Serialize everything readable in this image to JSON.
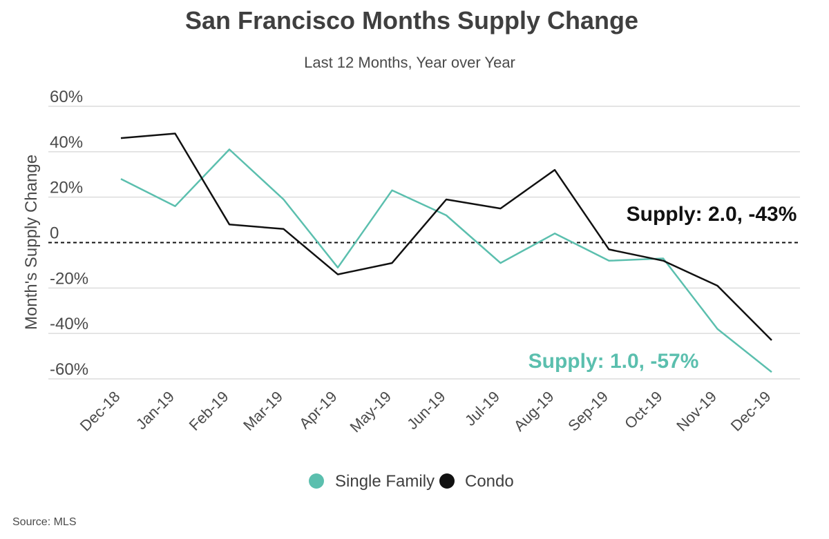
{
  "chart_data": {
    "type": "line",
    "title": "San Francisco Months Supply Change",
    "subtitle": "Last 12 Months, Year over Year",
    "ylabel": "Month's Supply Change",
    "xlabel": "",
    "categories": [
      "Dec-18",
      "Jan-19",
      "Feb-19",
      "Mar-19",
      "Apr-19",
      "May-19",
      "Jun-19",
      "Jul-19",
      "Aug-19",
      "Sep-19",
      "Oct-19",
      "Nov-19",
      "Dec-19"
    ],
    "ylim": [
      -60,
      60
    ],
    "yticks": [
      60,
      40,
      20,
      0,
      -20,
      -40,
      -60
    ],
    "ytick_labels": [
      "60%",
      "40%",
      "20%",
      "0",
      "-20%",
      "-40%",
      "-60%"
    ],
    "grid": true,
    "series": [
      {
        "name": "Single Family",
        "color": "#5bbfae",
        "values": [
          28,
          16,
          41,
          19,
          -11,
          23,
          12,
          -9,
          4,
          -8,
          -7,
          -38,
          -57
        ]
      },
      {
        "name": "Condo",
        "color": "#111111",
        "values": [
          46,
          48,
          8,
          6,
          -14,
          -9,
          19,
          15,
          32,
          -3,
          -8,
          -19,
          -43
        ]
      }
    ],
    "annotations": [
      {
        "text": "Supply: 2.0, -43%",
        "series": "Condo",
        "color": "#111111"
      },
      {
        "text": "Supply: 1.0, -57%",
        "series": "Single Family",
        "color": "#5bbfae"
      }
    ],
    "legend": {
      "position": "bottom",
      "items": [
        "Single Family",
        "Condo"
      ]
    },
    "source": "Source:  MLS"
  }
}
